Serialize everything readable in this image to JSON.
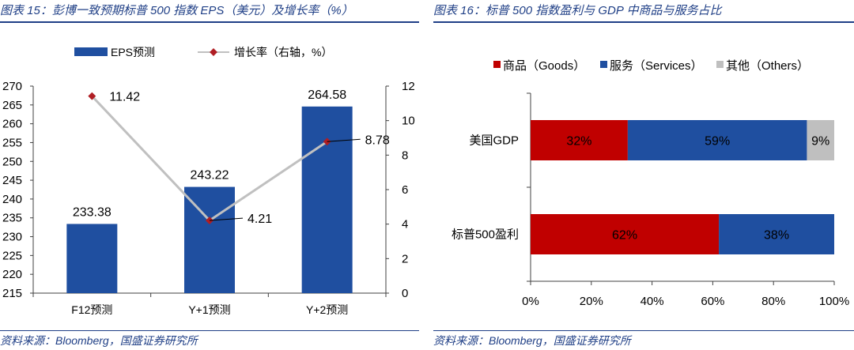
{
  "left_figure": {
    "title": "图表 15：彭博一致预期标普 500 指数 EPS（美元）及增长率（%）",
    "source": "资料来源：Bloomberg，国盛证券研究所"
  },
  "right_figure": {
    "title": "图表 16：标普 500 指数盈利与 GDP 中商品与服务占比",
    "source": "资料来源：Bloomberg，国盛证券研究所"
  },
  "chart_data": [
    {
      "type": "bar",
      "categories": [
        "F12预测",
        "Y+1预测",
        "Y+2预测"
      ],
      "series": [
        {
          "name": "EPS预测",
          "kind": "bar",
          "axis": "left",
          "color": "#1f4fa0",
          "values": [
            233.38,
            243.22,
            264.58
          ],
          "labels": [
            "233.38",
            "243.22",
            "264.58"
          ]
        },
        {
          "name": "增长率（右轴，%）",
          "kind": "line",
          "axis": "right",
          "color": "#c0c0c0",
          "marker_color": "#b01e24",
          "values": [
            11.42,
            4.21,
            8.78
          ],
          "labels": [
            "11.42",
            "4.21",
            "8.78"
          ]
        }
      ],
      "y_left": {
        "min": 215,
        "max": 270,
        "step": 5
      },
      "y_right": {
        "min": 0,
        "max": 12,
        "step": 2
      },
      "legend_position": "top"
    },
    {
      "type": "bar",
      "orientation": "horizontal",
      "stacked": true,
      "categories": [
        "美国GDP",
        "标普500盈利"
      ],
      "series": [
        {
          "name": "商品（Goods）",
          "color": "#c00000",
          "values": [
            32,
            62
          ],
          "labels": [
            "32%",
            "62%"
          ]
        },
        {
          "name": "服务（Services）",
          "color": "#1f4fa0",
          "values": [
            59,
            38
          ],
          "labels": [
            "59%",
            "38%"
          ]
        },
        {
          "name": "其他（Others）",
          "color": "#bfbfbf",
          "values": [
            9,
            0
          ],
          "labels": [
            "9%",
            ""
          ]
        }
      ],
      "x_axis": {
        "min": 0,
        "max": 100,
        "step": 20,
        "ticks": [
          "0%",
          "20%",
          "40%",
          "60%",
          "80%",
          "100%"
        ]
      },
      "legend_position": "top"
    }
  ]
}
